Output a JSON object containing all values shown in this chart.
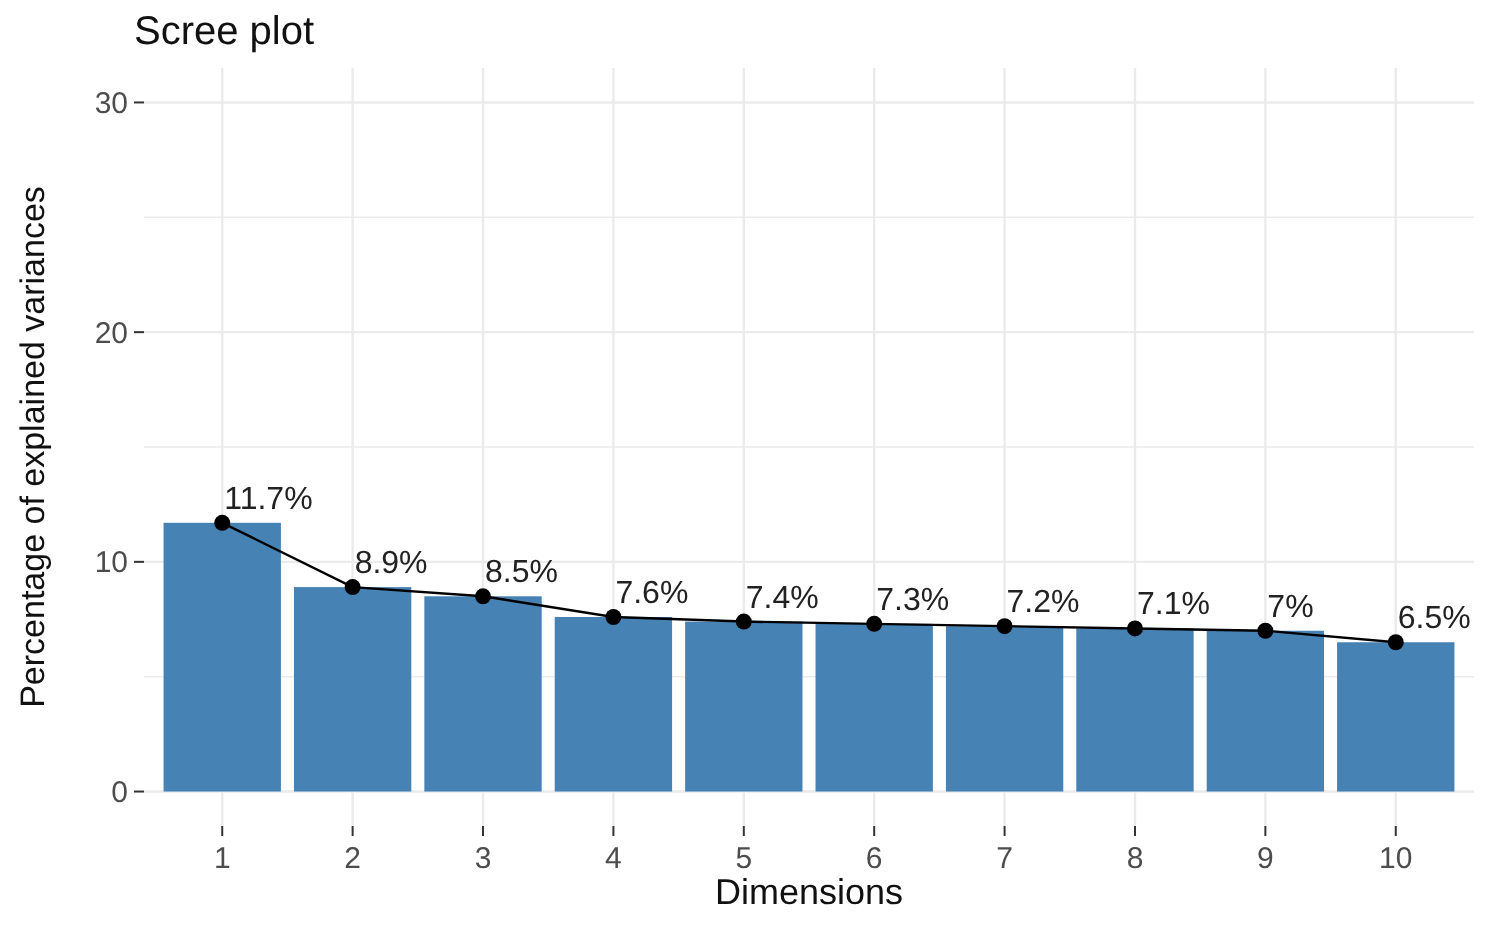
{
  "chart_data": {
    "type": "bar",
    "title": "Scree plot",
    "xlabel": "Dimensions",
    "ylabel": "Percentage of explained variances",
    "categories": [
      "1",
      "2",
      "3",
      "4",
      "5",
      "6",
      "7",
      "8",
      "9",
      "10"
    ],
    "series": [
      {
        "color": "#4682b4",
        "values": [
          11.7,
          8.9,
          8.5,
          7.6,
          7.4,
          7.3,
          7.2,
          7.1,
          7,
          6.5
        ]
      },
      {
        "type": "line",
        "color": "#000000",
        "marker": "circle",
        "line_style": "solid",
        "values": [
          11.7,
          8.9,
          8.5,
          7.6,
          7.4,
          7.3,
          7.2,
          7.1,
          7,
          6.5
        ],
        "value_labels": [
          "11.7%",
          "8.9%",
          "8.5%",
          "7.6%",
          "7.4%",
          "7.3%",
          "7.2%",
          "7.1%",
          "7%",
          "6.5%"
        ]
      }
    ],
    "ylim": [
      -1.5,
      31.5
    ],
    "yticks": [
      0,
      {
        "value": 5,
        "label": null
      },
      10,
      {
        "value": 15,
        "label": null
      },
      20,
      {
        "value": 25,
        "label": null
      },
      30
    ],
    "grid": true
  }
}
